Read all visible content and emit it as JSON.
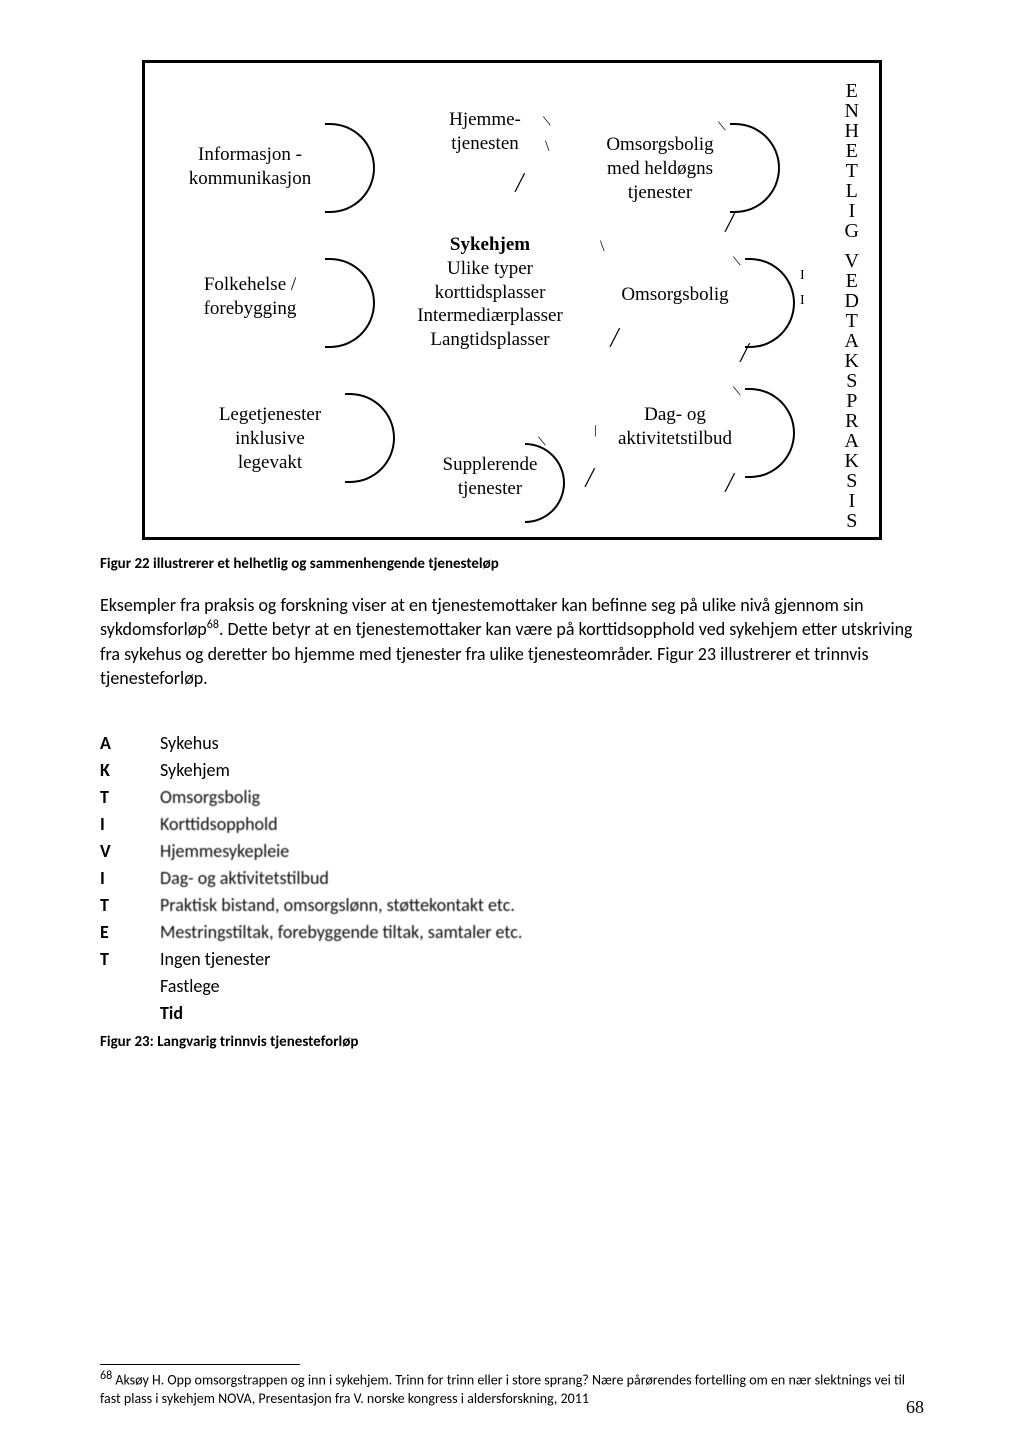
{
  "diagram": {
    "nodes": {
      "n1": "Informasjon -\nkommunikasjon",
      "n2": "Folkehelse /\nforebygging",
      "n3": "Legetjenester\ninklusive\nlegevakt",
      "c1": "Hjemme-\ntjenesten",
      "c2_bold": "Sykehjem",
      "c2_rest": "Ulike typer\nkorttidsplasser\nIntermediærplasser\nLangtidsplasser",
      "c3": "Supplerende\ntjenester",
      "r1": "Omsorgsbolig\nmed heldøgns\ntjenester",
      "r2": "Omsorgsbolig",
      "r3": "Dag- og\naktivitetstilbud"
    },
    "vertical": "ENHETLIG VEDTAKSPRAKSIS"
  },
  "caption1": "Figur 22 illustrerer et helhetlig og sammenhengende tjenesteløp",
  "paragraph": "Eksempler fra praksis og forskning viser at en tjenestemottaker kan befinne seg på ulike nivå gjennom sin sykdomsforløp",
  "footref": "68",
  "paragraph2": ". Dette betyr at en tjenestemottaker kan være på korttidsopphold ved sykehjem etter utskriving fra sykehus og deretter bo hjemme med tjenester fra ulike tjenesteområder. Figur 23 illustrerer et trinnvis tjenesteforløp.",
  "list": [
    {
      "letter": "A",
      "text": "Sykehus"
    },
    {
      "letter": "K",
      "text": "Sykehjem"
    },
    {
      "letter": "T",
      "text": "Omsorgsbolig"
    },
    {
      "letter": "I",
      "text": "Korttidsopphold"
    },
    {
      "letter": "V",
      "text": "Hjemmesykepleie"
    },
    {
      "letter": "I",
      "text": "Dag- og aktivitetstilbud"
    },
    {
      "letter": "T",
      "text": "Praktisk bistand, omsorgslønn, støttekontakt etc."
    },
    {
      "letter": "E",
      "text": "Mestringstiltak, forebyggende tiltak, samtaler etc."
    },
    {
      "letter": "T",
      "text": "Ingen tjenester"
    }
  ],
  "list_extra": [
    {
      "letter": "",
      "text": "Fastlege"
    },
    {
      "letter": "",
      "text": "Tid",
      "bold": true
    }
  ],
  "caption2": "Figur 23: Langvarig trinnvis tjenesteforløp",
  "footnote": "Aksøy H. Opp omsorgstrappen og inn i sykehjem. Trinn for trinn eller i store sprang? Nære pårørendes fortelling om en nær slektnings vei til fast plass i sykehjem NOVA, Presentasjon fra V. norske kongress i aldersforskning, 2011",
  "footnote_num": "68",
  "page": "68",
  "colors": {
    "text": "#000000",
    "bg": "#ffffff"
  }
}
